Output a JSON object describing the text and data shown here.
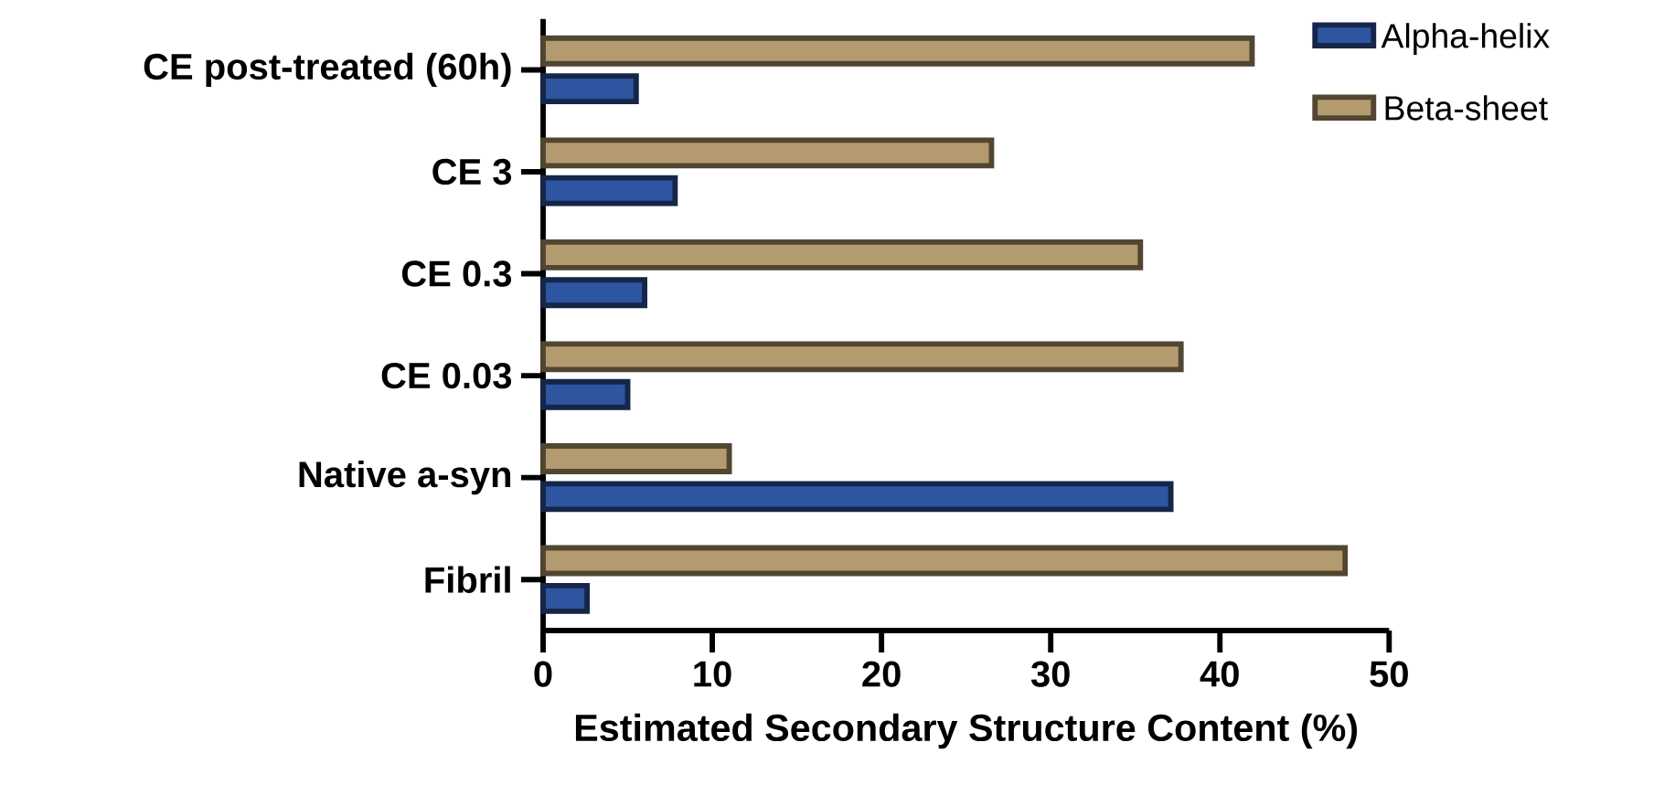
{
  "chart_data": {
    "type": "bar",
    "orientation": "horizontal",
    "xlabel": "Estimated Secondary Structure Content (%)",
    "categories": [
      "CE post-treated (60h)",
      "CE 3",
      "CE 0.3",
      "CE 0.03",
      "Native a-syn",
      "Fibril"
    ],
    "series": [
      {
        "name": "Alpha-helix",
        "color": "#2e55a0",
        "values": [
          5.5,
          7.8,
          6.0,
          5.0,
          37.1,
          2.6
        ]
      },
      {
        "name": "Beta-sheet",
        "color": "#b39b6f",
        "values": [
          41.9,
          26.5,
          35.3,
          37.7,
          11.0,
          47.4
        ]
      }
    ],
    "xlim": [
      0,
      50
    ],
    "xticks": [
      0,
      10,
      20,
      30,
      40,
      50
    ],
    "grid": false,
    "legend": "top right"
  }
}
